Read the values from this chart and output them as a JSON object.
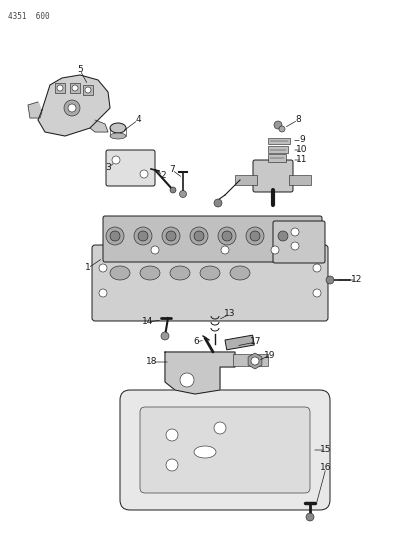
{
  "title": "4351 600",
  "bg_color": "#ffffff",
  "fg_color": "#1a1a1a",
  "figsize": [
    4.08,
    5.33
  ],
  "dpi": 100,
  "lw_main": 0.7,
  "lw_thin": 0.4,
  "gray_dark": "#1a1a1a",
  "gray_mid": "#555555",
  "gray_light": "#aaaaaa",
  "gray_fill": "#cccccc",
  "gray_body": "#bbbbbb",
  "label_fs": 6.5
}
